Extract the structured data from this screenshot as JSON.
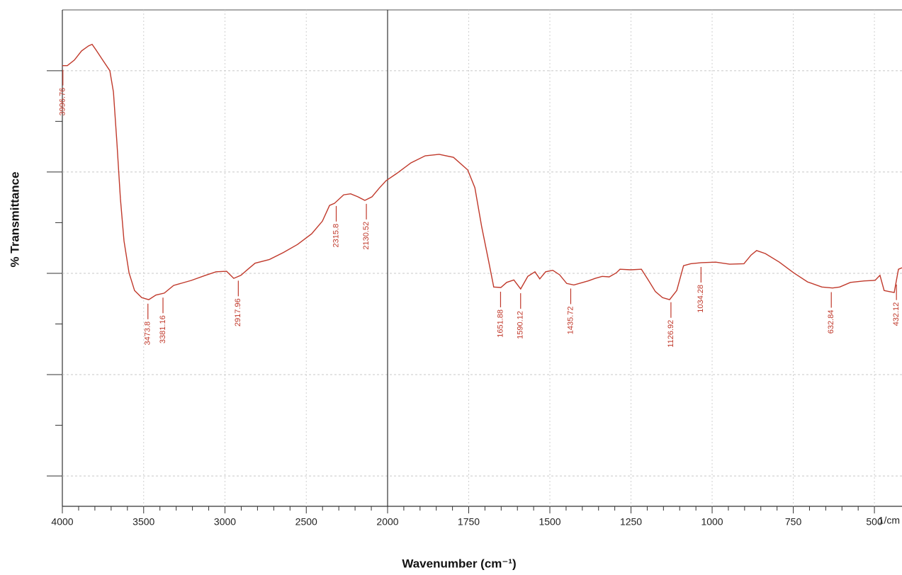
{
  "chart_data": {
    "type": "line",
    "x_label": "Wavenumber (cm⁻¹)",
    "y_label": "% Transmittance",
    "x_unit": "1/cm",
    "color": "#c0392b",
    "xlim": [
      4000,
      415
    ],
    "x_scale_break": 2000,
    "xticks": [
      4000,
      3500,
      3000,
      2500,
      2000,
      1750,
      1500,
      1250,
      1000,
      750,
      500
    ],
    "ylim": [
      -6,
      92
    ],
    "yticks": [
      0,
      20,
      40,
      60,
      80
    ],
    "grid": true,
    "x": [
      4000,
      3969.5,
      3926,
      3882,
      3839,
      3817,
      3795,
      3752,
      3708,
      3686,
      3665,
      3643,
      3621,
      3590,
      3556,
      3512,
      3469,
      3425,
      3373,
      3316,
      3207,
      3120,
      3055,
      2990,
      2946,
      2902,
      2859,
      2815,
      2728,
      2641,
      2554,
      2467,
      2401,
      2357,
      2327,
      2270,
      2227,
      2183,
      2140,
      2096,
      2052,
      2009,
      1972,
      1928,
      1884,
      1841,
      1797,
      1753,
      1731,
      1710,
      1688,
      1673,
      1651,
      1633,
      1611,
      1590,
      1568,
      1546,
      1531,
      1513,
      1491,
      1470,
      1448,
      1426,
      1382,
      1360,
      1339,
      1317,
      1295,
      1284,
      1251,
      1218,
      1197,
      1175,
      1153,
      1131,
      1109,
      1088,
      1066,
      1033,
      989,
      946,
      902,
      880,
      863,
      836,
      793,
      749,
      706,
      662,
      629,
      607,
      574,
      531,
      498,
      483,
      470,
      455,
      439,
      426,
      415
    ],
    "values": [
      81.0,
      81.0,
      82.1,
      83.9,
      84.9,
      85.2,
      84.2,
      82.1,
      80.0,
      75.8,
      66.0,
      54.8,
      46.4,
      40.1,
      36.6,
      35.2,
      34.8,
      35.7,
      36.1,
      37.6,
      38.6,
      39.6,
      40.3,
      40.4,
      39.0,
      39.6,
      40.8,
      42.0,
      42.7,
      44.1,
      45.7,
      47.8,
      50.3,
      53.4,
      53.8,
      55.5,
      55.7,
      55.1,
      54.4,
      55.1,
      56.8,
      58.3,
      59.7,
      61.8,
      63.2,
      63.5,
      62.9,
      60.4,
      56.9,
      49.2,
      42.2,
      37.3,
      37.2,
      38.2,
      38.7,
      36.9,
      39.4,
      40.3,
      38.9,
      40.3,
      40.6,
      39.7,
      38.0,
      37.7,
      38.5,
      39.0,
      39.4,
      39.3,
      40.1,
      40.8,
      40.7,
      40.8,
      38.7,
      36.4,
      35.2,
      34.8,
      36.6,
      41.5,
      41.9,
      42.1,
      42.2,
      41.8,
      41.9,
      43.6,
      44.5,
      43.9,
      42.2,
      40.1,
      38.3,
      37.3,
      37.1,
      37.3,
      38.2,
      38.5,
      38.6,
      39.6,
      36.6,
      36.4,
      36.2,
      40.8,
      41.1
    ],
    "peaks": [
      3996.76,
      3473.8,
      3381.16,
      2917.96,
      2315.8,
      2130.52,
      1651.88,
      1590.12,
      1435.72,
      1126.92,
      1034.28,
      632.84,
      432.12
    ]
  }
}
